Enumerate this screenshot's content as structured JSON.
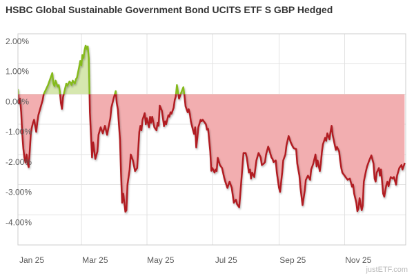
{
  "page": {
    "title": "HSBC Global Sustainable Government Bond UCITS ETF S GBP Hedged",
    "watermark": "justETF.com"
  },
  "chart_data": {
    "type": "area",
    "title": "HSBC Global Sustainable Government Bond UCITS ETF S GBP Hedged",
    "subtitle": "",
    "legend": false,
    "grid": true,
    "baseline": 0,
    "x_axis": {
      "type": "time",
      "start_label": "Jan 25",
      "span_days": 361,
      "tick_days": [
        0,
        59,
        120,
        181,
        243,
        304
      ],
      "tick_labels": [
        "Jan 25",
        "Mar 25",
        "May 25",
        "Jul 25",
        "Sep 25",
        "Nov 25"
      ]
    },
    "y_axis": {
      "unit": "%",
      "min": -5,
      "max": 2,
      "tick_values": [
        2,
        1,
        0,
        -1,
        -2,
        -3,
        -4
      ],
      "tick_labels": [
        "2.00%",
        "1.00%",
        "0.00%",
        "-1.00%",
        "-2.00%",
        "-3.00%",
        "-4.00%"
      ]
    },
    "colors": {
      "positive_line": "#85ba1f",
      "positive_fill": "#d6e7af",
      "negative_line": "#b11d20",
      "negative_fill": "#f2aeb0",
      "gridline": "#e2e2e2",
      "plot_border": "#cccccc",
      "title_text": "#333333",
      "axis_text": "#595959",
      "watermark_text": "#b9b9b9"
    },
    "series": [
      {
        "name": "HSBC Global Sustainable Government Bond UCITS ETF S GBP Hedged",
        "unit": "percent_cumulative_return",
        "points": [
          [
            0,
            0.15
          ],
          [
            1,
            -0.3
          ],
          [
            2,
            -0.15
          ],
          [
            3,
            -0.6
          ],
          [
            4,
            -1.3
          ],
          [
            5,
            -1.8
          ],
          [
            6,
            -2.1
          ],
          [
            7,
            -2.27
          ],
          [
            8,
            -2.0
          ],
          [
            9,
            -2.3
          ],
          [
            10,
            -2.42
          ],
          [
            11,
            -1.9
          ],
          [
            12,
            -1.3
          ],
          [
            13,
            -1.1
          ],
          [
            14,
            -0.95
          ],
          [
            15,
            -0.85
          ],
          [
            17,
            -1.25
          ],
          [
            18,
            -0.95
          ],
          [
            19,
            -0.7
          ],
          [
            21,
            -0.45
          ],
          [
            23,
            -0.2
          ],
          [
            24,
            0.0
          ],
          [
            26,
            0.15
          ],
          [
            28,
            0.3
          ],
          [
            30,
            0.5
          ],
          [
            32,
            0.7
          ],
          [
            33,
            0.35
          ],
          [
            34,
            0.27
          ],
          [
            35,
            0.45
          ],
          [
            37,
            0.25
          ],
          [
            38,
            0.3
          ],
          [
            39,
            0.1
          ],
          [
            40,
            -0.3
          ],
          [
            41,
            -0.49
          ],
          [
            42,
            -0.1
          ],
          [
            44,
            0.2
          ],
          [
            45,
            0.35
          ],
          [
            46,
            0.28
          ],
          [
            48,
            0.42
          ],
          [
            49,
            0.38
          ],
          [
            50,
            0.3
          ],
          [
            51,
            0.45
          ],
          [
            53,
            0.35
          ],
          [
            54,
            0.5
          ],
          [
            55,
            0.55
          ],
          [
            57,
            0.9
          ],
          [
            58,
            1.1
          ],
          [
            59,
            0.95
          ],
          [
            60,
            1.3
          ],
          [
            61,
            1.2
          ],
          [
            62,
            1.45
          ],
          [
            63,
            1.61
          ],
          [
            64,
            1.5
          ],
          [
            65,
            1.58
          ],
          [
            66,
            1.2
          ],
          [
            67,
            -0.6
          ],
          [
            68,
            -1.4
          ],
          [
            69,
            -2.1
          ],
          [
            70,
            -1.6
          ],
          [
            72,
            -2.15
          ],
          [
            74,
            -1.9
          ],
          [
            75,
            -1.35
          ],
          [
            77,
            -1.1
          ],
          [
            79,
            -1.3
          ],
          [
            81,
            -1.05
          ],
          [
            83,
            -1.35
          ],
          [
            86,
            -0.8
          ],
          [
            87,
            -0.45
          ],
          [
            89,
            -0.15
          ],
          [
            91,
            0.1
          ],
          [
            92,
            -0.3
          ],
          [
            93,
            -0.5
          ],
          [
            95,
            -1.5
          ],
          [
            96,
            -2.7
          ],
          [
            97,
            -3.6
          ],
          [
            98,
            -3.3
          ],
          [
            100,
            -3.9
          ],
          [
            101,
            -3.85
          ],
          [
            102,
            -3.0
          ],
          [
            104,
            -2.5
          ],
          [
            105,
            -2.0
          ],
          [
            107,
            -2.2
          ],
          [
            109,
            -2.55
          ],
          [
            111,
            -2.45
          ],
          [
            113,
            -1.25
          ],
          [
            114,
            -1.05
          ],
          [
            115,
            -1.2
          ],
          [
            116,
            -0.85
          ],
          [
            118,
            -0.63
          ],
          [
            119,
            -1.0
          ],
          [
            120,
            -0.8
          ],
          [
            122,
            -1.1
          ],
          [
            123,
            -0.75
          ],
          [
            124,
            -0.95
          ],
          [
            125,
            -0.75
          ],
          [
            127,
            -1.1
          ],
          [
            129,
            -1.2
          ],
          [
            130,
            -0.95
          ],
          [
            131,
            -1.05
          ],
          [
            132,
            -0.38
          ],
          [
            134,
            -0.55
          ],
          [
            136,
            -1.06
          ],
          [
            137,
            -0.9
          ],
          [
            138,
            -1.0
          ],
          [
            140,
            -0.7
          ],
          [
            141,
            -0.75
          ],
          [
            142,
            -0.6
          ],
          [
            143,
            -0.65
          ],
          [
            145,
            -0.45
          ],
          [
            146,
            -0.19
          ],
          [
            147,
            -0.08
          ],
          [
            148,
            0.3
          ],
          [
            150,
            -0.15
          ],
          [
            151,
            -0.05
          ],
          [
            152,
            0.05
          ],
          [
            154,
            0.23
          ],
          [
            155,
            -0.05
          ],
          [
            156,
            -0.4
          ],
          [
            158,
            -0.6
          ],
          [
            159,
            -0.5
          ],
          [
            160,
            -0.65
          ],
          [
            161,
            -0.9
          ],
          [
            163,
            -1.2
          ],
          [
            164,
            -1.32
          ],
          [
            165,
            -1.1
          ],
          [
            166,
            -1.77
          ],
          [
            167,
            -1.45
          ],
          [
            168,
            -1.1
          ],
          [
            170,
            -0.85
          ],
          [
            171,
            -0.9
          ],
          [
            172,
            -0.85
          ],
          [
            174,
            -0.95
          ],
          [
            175,
            -1.0
          ],
          [
            176,
            -1.18
          ],
          [
            177,
            -1.15
          ],
          [
            179,
            -1.9
          ],
          [
            180,
            -2.54
          ],
          [
            181,
            -2.45
          ],
          [
            183,
            -2.6
          ],
          [
            184,
            -2.5
          ],
          [
            185,
            -2.55
          ],
          [
            186,
            -2.11
          ],
          [
            188,
            -2.35
          ],
          [
            189,
            -2.4
          ],
          [
            190,
            -2.45
          ],
          [
            192,
            -2.77
          ],
          [
            193,
            -2.9
          ],
          [
            194,
            -3.0
          ],
          [
            195,
            -3.11
          ],
          [
            197,
            -2.9
          ],
          [
            198,
            -3.0
          ],
          [
            199,
            -3.1
          ],
          [
            201,
            -3.6
          ],
          [
            203,
            -3.5
          ],
          [
            204,
            -3.65
          ],
          [
            206,
            -3.75
          ],
          [
            207,
            -3.3
          ],
          [
            209,
            -2.4
          ],
          [
            210,
            -1.95
          ],
          [
            212,
            -1.95
          ],
          [
            213,
            -2.1
          ],
          [
            215,
            -2.6
          ],
          [
            216,
            -2.5
          ],
          [
            217,
            -2.8
          ],
          [
            218,
            -2.6
          ],
          [
            220,
            -2.75
          ],
          [
            222,
            -2.2
          ],
          [
            224,
            -1.95
          ],
          [
            226,
            -2.1
          ],
          [
            227,
            -2.35
          ],
          [
            229,
            -2.3
          ],
          [
            230,
            -2.25
          ],
          [
            231,
            -2.0
          ],
          [
            233,
            -1.74
          ],
          [
            234,
            -1.85
          ],
          [
            236,
            -2.1
          ],
          [
            237,
            -2.15
          ],
          [
            238,
            -2.25
          ],
          [
            240,
            -2.2
          ],
          [
            241,
            -2.6
          ],
          [
            243,
            -3.1
          ],
          [
            244,
            -3.24
          ],
          [
            246,
            -2.6
          ],
          [
            247,
            -2.2
          ],
          [
            249,
            -2.0
          ],
          [
            250,
            -1.7
          ],
          [
            252,
            -1.39
          ],
          [
            254,
            -1.6
          ],
          [
            256,
            -1.75
          ],
          [
            257,
            -1.8
          ],
          [
            259,
            -1.82
          ],
          [
            260,
            -2.3
          ],
          [
            262,
            -2.7
          ],
          [
            263,
            -3.1
          ],
          [
            265,
            -3.68
          ],
          [
            267,
            -3.2
          ],
          [
            268,
            -2.85
          ],
          [
            270,
            -2.7
          ],
          [
            272,
            -2.84
          ],
          [
            273,
            -2.5
          ],
          [
            275,
            -2.3
          ],
          [
            277,
            -2.0
          ],
          [
            278,
            -2.4
          ],
          [
            279,
            -2.2
          ],
          [
            281,
            -2.55
          ],
          [
            282,
            -2.3
          ],
          [
            283,
            -1.9
          ],
          [
            284,
            -1.66
          ],
          [
            286,
            -1.45
          ],
          [
            287,
            -1.55
          ],
          [
            288,
            -1.3
          ],
          [
            290,
            -1.5
          ],
          [
            291,
            -1.25
          ],
          [
            292,
            -1.05
          ],
          [
            293,
            -1.35
          ],
          [
            295,
            -1.7
          ],
          [
            296,
            -1.85
          ],
          [
            297,
            -1.75
          ],
          [
            299,
            -1.9
          ],
          [
            300,
            -2.2
          ],
          [
            301,
            -2.45
          ],
          [
            302,
            -2.6
          ],
          [
            304,
            -2.7
          ],
          [
            306,
            -2.8
          ],
          [
            307,
            -2.84
          ],
          [
            309,
            -2.8
          ],
          [
            311,
            -3.07
          ],
          [
            312,
            -3.0
          ],
          [
            313,
            -3.3
          ],
          [
            315,
            -3.6
          ],
          [
            316,
            -3.88
          ],
          [
            317,
            -3.8
          ],
          [
            318,
            -3.45
          ],
          [
            320,
            -3.85
          ],
          [
            321,
            -3.7
          ],
          [
            322,
            -2.9
          ],
          [
            324,
            -2.55
          ],
          [
            325,
            -2.4
          ],
          [
            327,
            -2.2
          ],
          [
            329,
            -2.03
          ],
          [
            331,
            -2.3
          ],
          [
            332,
            -2.8
          ],
          [
            333,
            -2.9
          ],
          [
            334,
            -2.6
          ],
          [
            336,
            -2.45
          ],
          [
            337,
            -2.7
          ],
          [
            338,
            -2.5
          ],
          [
            340,
            -3.3
          ],
          [
            341,
            -3.4
          ],
          [
            343,
            -3.0
          ],
          [
            344,
            -2.9
          ],
          [
            345,
            -3.05
          ],
          [
            347,
            -2.75
          ],
          [
            349,
            -2.8
          ],
          [
            350,
            -2.75
          ],
          [
            352,
            -3.0
          ],
          [
            353,
            -2.7
          ],
          [
            355,
            -2.45
          ],
          [
            357,
            -2.35
          ],
          [
            358,
            -2.5
          ],
          [
            360,
            -2.3
          ]
        ]
      }
    ]
  }
}
